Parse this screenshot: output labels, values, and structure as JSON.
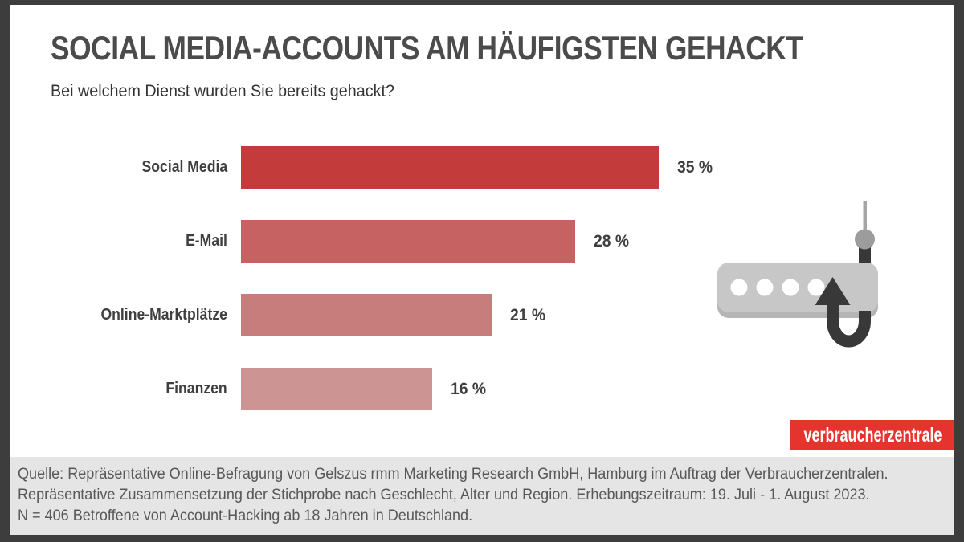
{
  "header": {
    "title": "SOCIAL MEDIA-ACCOUNTS AM HÄUFIGSTEN GEHACKT",
    "subtitle": "Bei welchem Dienst wurden Sie bereits gehackt?"
  },
  "chart_data": {
    "type": "bar",
    "orientation": "horizontal",
    "title": "SOCIAL MEDIA-ACCOUNTS AM HÄUFIGSTEN GEHACKT",
    "xlabel": "",
    "ylabel": "",
    "categories": [
      "Social Media",
      "E-Mail",
      "Online-Marktplätze",
      "Finanzen"
    ],
    "values": [
      35,
      28,
      21,
      16
    ],
    "value_labels": [
      "35 %",
      "28 %",
      "21 %",
      "16 %"
    ],
    "bar_colors": [
      "#c33b3a",
      "#c66261",
      "#c67d7b",
      "#cc9493"
    ],
    "xlim": [
      0,
      35
    ],
    "grid": false,
    "legend": false,
    "value_label_position": "right-of-bar"
  },
  "icon": {
    "name": "password-phishing-hook-icon",
    "parts": [
      "password-field-icon",
      "password-dots",
      "fishing-hook-icon",
      "fishing-line",
      "sinker-ball"
    ],
    "field_color": "#c7c7c7",
    "field_shadow_color": "#b5b5b5",
    "dot_color": "#ffffff",
    "hook_color": "#383838",
    "line_color": "#a5a5a5",
    "ball_color": "#9c9c9c"
  },
  "logo": {
    "text": "verbraucherzentrale",
    "bg_color": "#e5332d",
    "text_color": "#ffffff"
  },
  "footer": {
    "lines": [
      "Quelle: Repräsentative Online-Befragung von Gelszus rmm Marketing Research GmbH, Hamburg im Auftrag der Verbraucherzentralen.",
      "Repräsentative Zusammensetzung der Stichprobe nach Geschlecht, Alter und Region. Erhebungszeitraum: 19. Juli - 1. August 2023.",
      "N = 406 Betroffene von Account-Hacking ab 18 Jahren in Deutschland."
    ]
  },
  "colors": {
    "frame": "#3d3d3d",
    "canvas_bg": "#ffffff",
    "footer_bg": "#e5e5e5",
    "accent_red": "#e5332d",
    "text_dark": "#3f3f3f"
  }
}
